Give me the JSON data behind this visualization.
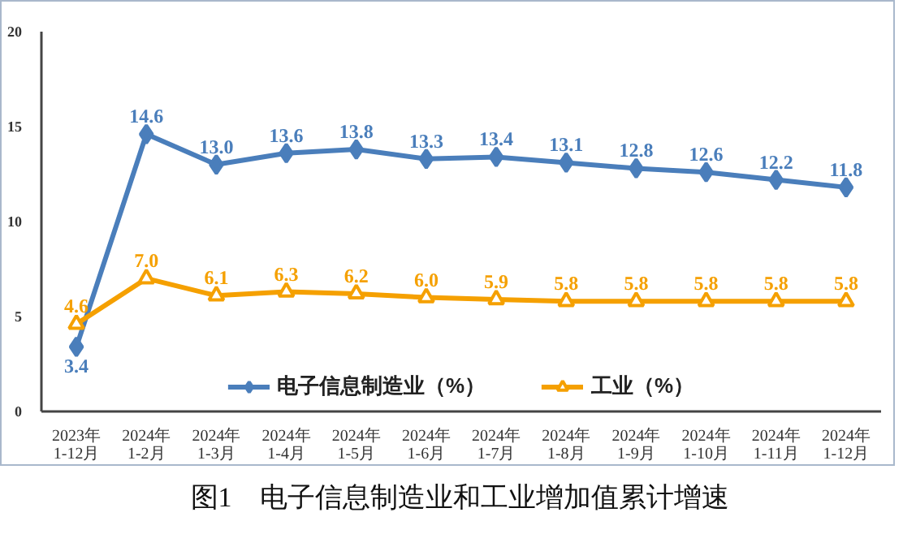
{
  "chart_data": {
    "type": "line",
    "title": "图1　电子信息制造业和工业增加值累计增速",
    "categories": [
      "2023年\n1-12月",
      "2024年\n1-2月",
      "2024年\n1-3月",
      "2024年\n1-4月",
      "2024年\n1-5月",
      "2024年\n1-6月",
      "2024年\n1-7月",
      "2024年\n1-8月",
      "2024年\n1-9月",
      "2024年\n1-10月",
      "2024年\n1-11月",
      "2024年\n1-12月"
    ],
    "series": [
      {
        "name": "电子信息制造业（%）",
        "color": "#4a7ebb",
        "marker": "diamond",
        "values": [
          3.4,
          14.6,
          13.0,
          13.6,
          13.8,
          13.3,
          13.4,
          13.1,
          12.8,
          12.6,
          12.2,
          11.8
        ],
        "value_labels": [
          "3.4",
          "14.6",
          "13.0",
          "13.6",
          "13.8",
          "13.3",
          "13.4",
          "13.1",
          "12.8",
          "12.6",
          "12.2",
          "11.8"
        ]
      },
      {
        "name": "工业（%）",
        "color": "#f5a000",
        "marker": "triangle",
        "values": [
          4.6,
          7.0,
          6.1,
          6.3,
          6.2,
          6.0,
          5.9,
          5.8,
          5.8,
          5.8,
          5.8,
          5.8
        ],
        "value_labels": [
          "4.6",
          "7.0",
          "6.1",
          "6.3",
          "6.2",
          "6.0",
          "5.9",
          "5.8",
          "5.8",
          "5.8",
          "5.8",
          "5.8"
        ]
      }
    ],
    "ylim": [
      0,
      20
    ],
    "yticks": [
      0,
      5,
      10,
      15,
      20
    ],
    "grid": false,
    "legend": "bottom",
    "line_style": "solid"
  }
}
